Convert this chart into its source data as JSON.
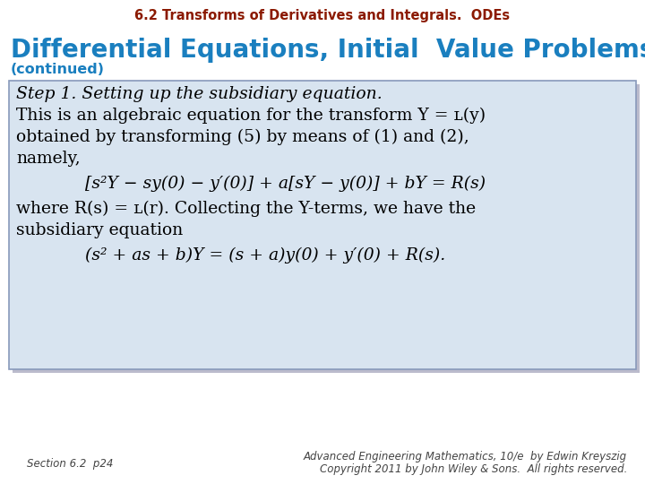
{
  "title": "6.2 Transforms of Derivatives and Integrals.  ODEs",
  "title_color": "#8B1A00",
  "heading": "Differential Equations, Initial  Value Problems",
  "heading_color": "#1a7fbf",
  "subheading": "(continued)",
  "subheading_color": "#1a7fbf",
  "box_bg_color": "#d8e4f0",
  "box_border_color": "#8899bb",
  "step_line": "Step 1. Setting up the subsidiary equation.",
  "line2": "This is an algebraic equation for the transform Y = ʟ(y)",
  "line3": "obtained by transforming (5) by means of (1) and (2),",
  "line4": "namely,",
  "line5": "[s²Y − sy(0) − y′(0)] + a[sY − y(0)] + bY = R(s)",
  "line6": "where R(s) = ʟ(r). Collecting the Y-terms, we have the",
  "line7": "subsidiary equation",
  "line8": "(s² + as + b)Y = (s + a)y(0) + y′(0) + R(s).",
  "footer_left": "Section 6.2  p24",
  "footer_right_line1": "Advanced Engineering Mathematics, 10/e  by Edwin Kreyszig",
  "footer_right_line2": "Copyright 2011 by John Wiley & Sons.  All rights reserved.",
  "footer_color": "#444444",
  "bg_color": "#ffffff"
}
